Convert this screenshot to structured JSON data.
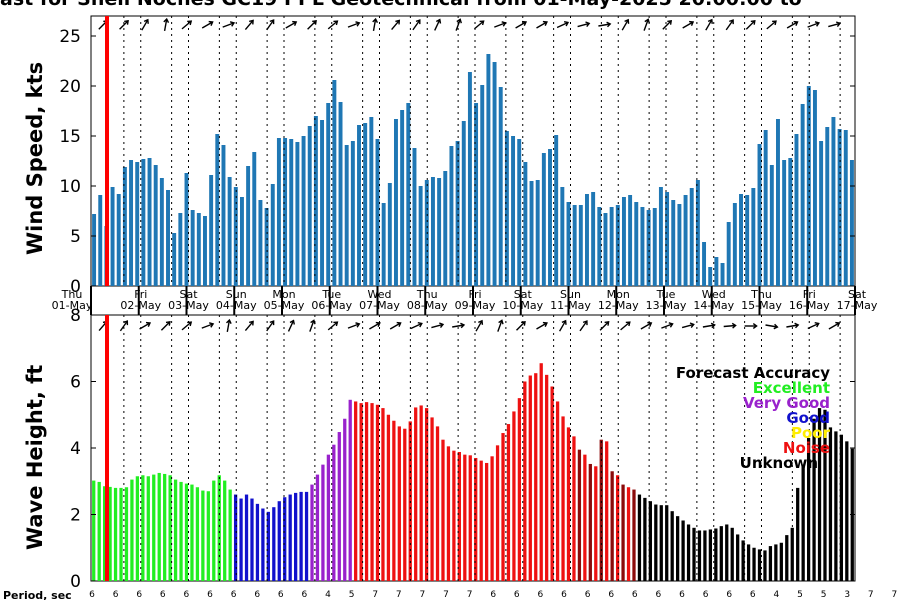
{
  "title": "ast for Shell Noches  GC19 PPL  Geotechnical from 01-May-2025 20:00:00 to",
  "colors": {
    "wind_bar": "#1f77b4",
    "now_line": "#ff0000",
    "Excellent": "#22ee22",
    "Very Good": "#9922cc",
    "Good": "#1111cc",
    "Poor": "#ffee00",
    "Noise": "#ee1111",
    "Noise_dark": "#8b0a0a",
    "Unknown": "#000000"
  },
  "day_labels": [
    {
      "dow": "Thu",
      "date": "01-May"
    },
    {
      "dow": "Fri",
      "date": "02-May"
    },
    {
      "dow": "Sat",
      "date": "03-May"
    },
    {
      "dow": "Sun",
      "date": "04-May"
    },
    {
      "dow": "Mon",
      "date": "05-May"
    },
    {
      "dow": "Tue",
      "date": "06-May"
    },
    {
      "dow": "Wed",
      "date": "07-May"
    },
    {
      "dow": "Thu",
      "date": "08-May"
    },
    {
      "dow": "Fri",
      "date": "09-May"
    },
    {
      "dow": "Sat",
      "date": "10-May"
    },
    {
      "dow": "Sun",
      "date": "11-May"
    },
    {
      "dow": "Mon",
      "date": "12-May"
    },
    {
      "dow": "Tue",
      "date": "13-May"
    },
    {
      "dow": "Wed",
      "date": "14-May"
    },
    {
      "dow": "Thu",
      "date": "15-May"
    },
    {
      "dow": "Fri",
      "date": "16-May"
    },
    {
      "dow": "Sat",
      "date": "17-May"
    }
  ],
  "legend": {
    "title": "Forecast Accuracy",
    "entries": [
      "Excellent",
      "Very Good",
      "Good",
      "Poor",
      "Noise",
      "Unknown"
    ]
  },
  "period_label": "Period, sec",
  "periods": [
    "6",
    "6",
    "6",
    "6",
    "6",
    "6",
    "6",
    "6",
    "6",
    "6",
    "4",
    "5",
    "7",
    "7",
    "7",
    "7",
    "7",
    "6",
    "6",
    "6",
    "6",
    "6",
    "6",
    "6",
    "6",
    "6",
    "6",
    "6",
    "6",
    "4",
    "5",
    "5",
    "3",
    "7",
    "7",
    "6"
  ],
  "chart_data": [
    {
      "type": "bar",
      "title": "Wind Speed",
      "ylabel": "Wind Speed, kts",
      "ylim": [
        0,
        27
      ],
      "yticks": [
        0,
        5,
        10,
        15,
        20,
        25
      ],
      "grid": false,
      "values": [
        7.2,
        9.1,
        6.0,
        9.9,
        9.2,
        11.9,
        12.6,
        12.4,
        12.7,
        12.8,
        12.1,
        10.8,
        9.6,
        5.3,
        7.3,
        11.3,
        7.6,
        7.3,
        7.0,
        11.1,
        15.2,
        14.1,
        10.9,
        9.9,
        8.9,
        12.0,
        13.4,
        8.6,
        7.8,
        10.2,
        14.8,
        14.8,
        14.7,
        14.4,
        15.0,
        16.0,
        17.0,
        16.6,
        18.3,
        20.6,
        18.4,
        14.1,
        14.5,
        16.1,
        16.3,
        16.9,
        14.7,
        8.3,
        10.3,
        16.7,
        17.6,
        18.3,
        13.8,
        10.0,
        10.6,
        10.9,
        10.8,
        11.5,
        14.0,
        14.5,
        16.5,
        21.4,
        18.3,
        20.1,
        23.2,
        22.4,
        19.9,
        15.5,
        15.0,
        14.7,
        12.4,
        10.5,
        10.6,
        13.3,
        13.7,
        15.1,
        9.9,
        8.4,
        8.1,
        8.1,
        9.2,
        9.4,
        7.9,
        7.3,
        7.9,
        8.1,
        8.9,
        9.1,
        8.4,
        7.9,
        7.6,
        7.8,
        9.9,
        9.4,
        8.6,
        8.2,
        9.1,
        9.8,
        10.6,
        4.4,
        1.9,
        2.9,
        2.3,
        6.4,
        8.3,
        9.2,
        9.1,
        9.8,
        14.2,
        15.6,
        12.1,
        16.7,
        12.6,
        12.8,
        15.2,
        18.2,
        20.0,
        19.6,
        14.5,
        15.9,
        16.9,
        15.7,
        15.6,
        12.6
      ]
    },
    {
      "type": "bar",
      "title": "Wave Height",
      "ylabel": "Wave Height, ft",
      "ylim": [
        0,
        8
      ],
      "yticks": [
        0,
        2,
        4,
        6,
        8
      ],
      "grid": false,
      "values": [
        3.02,
        2.98,
        2.85,
        2.83,
        2.8,
        2.8,
        2.82,
        3.05,
        3.15,
        3.18,
        3.15,
        3.2,
        3.25,
        3.22,
        3.18,
        3.05,
        2.98,
        2.93,
        2.9,
        2.82,
        2.72,
        2.7,
        3.02,
        3.18,
        3.02,
        2.75,
        2.6,
        2.48,
        2.6,
        2.48,
        2.32,
        2.18,
        2.08,
        2.22,
        2.4,
        2.52,
        2.6,
        2.65,
        2.68,
        2.68,
        2.9,
        3.2,
        3.5,
        3.8,
        4.1,
        4.48,
        4.88,
        5.45,
        5.4,
        5.35,
        5.38,
        5.35,
        5.3,
        5.2,
        5.0,
        4.82,
        4.65,
        4.58,
        4.8,
        5.22,
        5.28,
        5.2,
        4.92,
        4.65,
        4.25,
        4.05,
        3.92,
        3.88,
        3.8,
        3.78,
        3.7,
        3.62,
        3.55,
        3.75,
        4.08,
        4.45,
        4.72,
        5.1,
        5.5,
        6.0,
        6.18,
        6.25,
        6.55,
        6.2,
        5.85,
        5.4,
        4.95,
        4.62,
        4.35,
        3.95,
        3.8,
        3.52,
        3.45,
        4.25,
        4.2,
        3.3,
        3.18,
        2.9,
        2.82,
        2.75,
        2.6,
        2.5,
        2.4,
        2.3,
        2.28,
        2.28,
        2.1,
        1.95,
        1.82,
        1.7,
        1.6,
        1.52,
        1.52,
        1.55,
        1.58,
        1.65,
        1.7,
        1.6,
        1.4,
        1.22,
        1.1,
        1.0,
        0.95,
        0.92,
        1.05,
        1.1,
        1.15,
        1.38,
        1.6,
        2.8,
        3.5,
        4.3,
        4.88,
        5.2,
        5.15,
        4.62,
        4.5,
        4.4,
        4.2,
        3.98
      ],
      "accuracy": {
        "Excellent": [
          0,
          26
        ],
        "Good": [
          26,
          40
        ],
        "Very Good": [
          40,
          48
        ],
        "Noise": [
          48,
          100
        ],
        "Unknown": [
          100,
          141
        ]
      }
    }
  ]
}
